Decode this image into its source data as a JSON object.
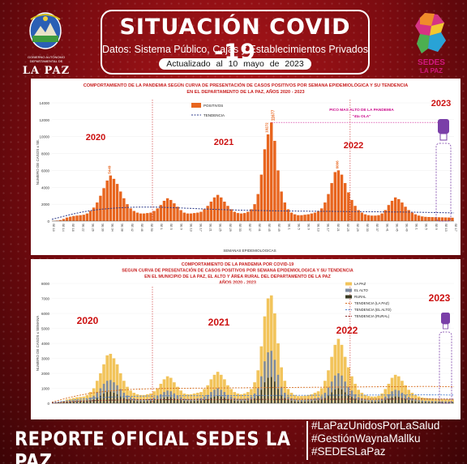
{
  "header": {
    "title": "SITUACIÓN COVID -19",
    "subtitle": "Datos: Sistema Público, Cajas y Establecimientos Privados",
    "updated": "Actualizado al 10 mayo de 2023",
    "left_logo": {
      "org_text": "GOBIERNO AUTÓNOMO DEPARTAMENTAL DE",
      "name": "LA PAZ",
      "icon": "department-shield-icon"
    },
    "right_logo": {
      "name": "SEDES",
      "sub": "LA PAZ",
      "icon": "sedes-map-logo-icon"
    }
  },
  "colors": {
    "bars": "#e8651e",
    "trend": "#2f3d8c",
    "year": "#cc1010",
    "peak": "#cc0c8c",
    "lapaz": "#f2c45b",
    "elalto": "#7f8ca0",
    "rural": "#3b3b22"
  },
  "chart_data": [
    {
      "type": "bar",
      "title_line1": "COMPORTAMIENTO DE LA PANDEMIA SEGÚN CURVA DE PRESENTACIÓN DE CASOS POSITIVOS POR SEMANA EPIDEMIOLÓGICA Y SU TENDENCIA",
      "title_line2": "EN EL DEPARTAMENTO DE LA PAZ, AÑOS 2020 - 2023",
      "xlabel": "SEMANAS EPIDEMIOLOGICAS",
      "ylabel": "NUMERO DE CASOS x SE.",
      "ylim": [
        0,
        14000
      ],
      "yticks": [
        "0",
        "2000",
        "4000",
        "6000",
        "8000",
        "10000",
        "12000",
        "14000"
      ],
      "xticks": [
        "SE 10",
        "SE 14",
        "SE 18",
        "SE 22",
        "SE 26",
        "SE 30",
        "SE 34",
        "SE 38",
        "SE 42",
        "SE 46",
        "SE 50",
        "SE 1",
        "SE 5",
        "SE 9",
        "SE 13",
        "SE 17",
        "SE 21",
        "SE 25",
        "SE 29",
        "SE 33",
        "SE 37",
        "SE 41",
        "SE 45",
        "SE 49",
        "SE 1",
        "SE 5",
        "SE 9",
        "SE 13",
        "SE 17",
        "SE 21",
        "SE 25",
        "SE 29",
        "SE 33",
        "SE 37",
        "SE 41",
        "SE 45",
        "SE 49",
        "SE 1",
        "SE 5",
        "SE 9",
        "SE 13",
        "SE 17"
      ],
      "legend": [
        "POSITIVOS",
        "TENDENCIA"
      ],
      "legend_position": "top-left",
      "years": [
        "2020",
        "2021",
        "2022",
        "2023"
      ],
      "peak_label": "PICO MAS ALTO DE LA PANDEMIA",
      "peak_sub": "\"4ta OLA\"",
      "peak_value": "11677",
      "annotations": [
        "5449",
        "10272",
        "6006"
      ],
      "series": [
        {
          "name": "POSITIVOS",
          "values": [
            30,
            60,
            120,
            250,
            420,
            520,
            600,
            650,
            700,
            750,
            900,
            1200,
            1600,
            2200,
            3000,
            3900,
            4800,
            5400,
            5000,
            4400,
            3500,
            2700,
            2000,
            1500,
            1200,
            1000,
            900,
            900,
            950,
            1000,
            1200,
            1500,
            1900,
            2400,
            2700,
            2500,
            2100,
            1700,
            1300,
            1000,
            900,
            900,
            950,
            1000,
            1100,
            1400,
            1800,
            2300,
            2800,
            3100,
            2800,
            2300,
            1800,
            1400,
            1100,
            950,
            900,
            950,
            1100,
            1400,
            2000,
            3200,
            5500,
            8500,
            10272,
            11677,
            9500,
            6000,
            3500,
            2200,
            1400,
            1000,
            800,
            700,
            700,
            750,
            800,
            900,
            1000,
            1200,
            1500,
            2200,
            3200,
            4500,
            5800,
            6006,
            5500,
            4500,
            3400,
            2500,
            1800,
            1300,
            1000,
            800,
            700,
            650,
            650,
            700,
            900,
            1300,
            1900,
            2400,
            2800,
            2600,
            2200,
            1700,
            1300,
            1000,
            800,
            650,
            550,
            500,
            480,
            470,
            460,
            450,
            440,
            430,
            420,
            400
          ]
        },
        {
          "name": "TENDENCIA",
          "values": [
            200,
            500,
            800,
            1050,
            1250,
            1400,
            1500,
            1580,
            1630,
            1660,
            1660,
            1640,
            1600,
            1560,
            1510,
            1460,
            1410,
            1370,
            1330,
            1300,
            1270,
            1250,
            1230,
            1210,
            1190,
            1180,
            1170,
            1160,
            1150,
            1140,
            1130,
            1120,
            1110,
            1100,
            1090,
            1080,
            1070,
            1050,
            1030,
            1010,
            990,
            970
          ]
        }
      ]
    },
    {
      "type": "bar",
      "title_line1": "COMPORTAMIENTO DE LA PANDEMIA POR COVID-19",
      "title_line2": "SEGUN CURVA DE PRESENTACIÓN DE CASOS POSITIVOS POR SEMANA EPIDEMIOLOGICA Y SU TENDENCIA",
      "title_line3": "EN EL MUNICIPIO DE LA PAZ, EL ALTO Y ÁREA RURAL DEL DEPARTAMENTO DE LA PAZ",
      "title_line4": "AÑOS 2020 - 2023",
      "ylabel": "NUMERO DE CASOS x SEMANA",
      "ylim": [
        0,
        8000
      ],
      "yticks": [
        "0",
        "1000",
        "2000",
        "3000",
        "4000",
        "5000",
        "6000",
        "7000",
        "8000"
      ],
      "legend": [
        "LA PAZ",
        "EL ALTO",
        "RURAL",
        "TENDENCIA (LA PAZ)",
        "TENDENCIA (EL ALTO)",
        "TENDENCIA (RURAL)"
      ],
      "legend_position": "top-right",
      "years": [
        "2020",
        "2021",
        "2022",
        "2023"
      ],
      "series": [
        {
          "name": "LA PAZ",
          "values": [
            20,
            40,
            80,
            150,
            250,
            300,
            350,
            400,
            420,
            450,
            550,
            750,
            1000,
            1500,
            2000,
            2600,
            3200,
            3300,
            3000,
            2600,
            2000,
            1500,
            1100,
            850,
            700,
            600,
            550,
            550,
            600,
            650,
            800,
            1000,
            1300,
            1600,
            1800,
            1700,
            1400,
            1100,
            850,
            650,
            600,
            600,
            650,
            700,
            750,
            950,
            1200,
            1600,
            1900,
            2100,
            1900,
            1600,
            1200,
            950,
            750,
            650,
            600,
            650,
            750,
            950,
            1400,
            2200,
            3800,
            5800,
            7000,
            7200,
            6000,
            4000,
            2400,
            1500,
            950,
            700,
            550,
            480,
            480,
            500,
            550,
            600,
            700,
            800,
            1000,
            1500,
            2200,
            3100,
            3900,
            4300,
            3900,
            3100,
            2400,
            1800,
            1300,
            900,
            700,
            550,
            480,
            450,
            450,
            500,
            650,
            950,
            1300,
            1700,
            1900,
            1800,
            1500,
            1200,
            900,
            700,
            550,
            450,
            380,
            350,
            330,
            320,
            310,
            300,
            290,
            280,
            270,
            250
          ]
        },
        {
          "name": "EL ALTO",
          "values": [
            10,
            20,
            40,
            80,
            130,
            160,
            190,
            210,
            220,
            230,
            280,
            380,
            500,
            750,
            1000,
            1300,
            1500,
            1550,
            1400,
            1200,
            950,
            700,
            520,
            400,
            330,
            280,
            260,
            260,
            280,
            300,
            380,
            470,
            600,
            750,
            850,
            800,
            660,
            520,
            400,
            300,
            280,
            280,
            300,
            330,
            350,
            450,
            560,
            750,
            900,
            1000,
            900,
            750,
            560,
            450,
            350,
            300,
            280,
            300,
            350,
            450,
            650,
            1000,
            1800,
            2800,
            3400,
            3500,
            2900,
            1900,
            1100,
            700,
            450,
            330,
            260,
            220,
            220,
            230,
            260,
            280,
            330,
            380,
            470,
            700,
            1050,
            1450,
            1850,
            2000,
            1850,
            1450,
            1100,
            850,
            600,
            420,
            330,
            260,
            220,
            210,
            210,
            230,
            300,
            450,
            600,
            800,
            900,
            850,
            700,
            560,
            420,
            330,
            260,
            210,
            180,
            160,
            150,
            150,
            145,
            140,
            135,
            130,
            125,
            115
          ]
        },
        {
          "name": "RURAL",
          "values": [
            5,
            10,
            20,
            40,
            60,
            80,
            90,
            100,
            110,
            115,
            140,
            190,
            250,
            370,
            500,
            650,
            750,
            780,
            700,
            600,
            480,
            350,
            260,
            200,
            165,
            140,
            130,
            130,
            140,
            150,
            190,
            230,
            300,
            370,
            420,
            400,
            330,
            260,
            200,
            150,
            140,
            140,
            150,
            165,
            175,
            225,
            280,
            370,
            450,
            500,
            450,
            370,
            280,
            225,
            175,
            150,
            140,
            150,
            175,
            225,
            330,
            500,
            900,
            1400,
            1700,
            1750,
            1450,
            950,
            550,
            350,
            225,
            165,
            130,
            110,
            110,
            115,
            130,
            140,
            165,
            190,
            235,
            350,
            520,
            730,
            920,
            1000,
            920,
            730,
            550,
            420,
            300,
            210,
            165,
            130,
            110,
            105,
            105,
            115,
            150,
            225,
            300,
            400,
            450,
            420,
            350,
            280,
            210,
            165,
            130,
            105,
            90,
            80,
            75,
            75,
            72,
            70,
            68,
            65,
            62,
            58
          ]
        },
        {
          "name": "TENDENCIA (LA PAZ)",
          "values": [
            80,
            250,
            420,
            560,
            670,
            760,
            830,
            880,
            920,
            950,
            970,
            985,
            995,
            1000,
            1005,
            1010,
            1015,
            1020,
            1025,
            1030,
            1035,
            1040,
            1045,
            1050,
            1055,
            1060,
            1065,
            1070,
            1075,
            1080,
            1085,
            1090,
            1095,
            1100,
            1105,
            1110,
            1115,
            1120,
            1125,
            1120,
            1110,
            1100
          ]
        },
        {
          "name": "TENDENCIA (EL ALTO)",
          "values": [
            40,
            120,
            210,
            280,
            335,
            380,
            415,
            440,
            460,
            475,
            485,
            492,
            497,
            500,
            502,
            505,
            507,
            510,
            512,
            515,
            517,
            520,
            522,
            525,
            527,
            530,
            532,
            535,
            537,
            540,
            542,
            545,
            547,
            550,
            552,
            555,
            557,
            560,
            562,
            560,
            555,
            550
          ]
        },
        {
          "name": "TENDENCIA (RURAL)",
          "values": [
            20,
            60,
            105,
            140,
            168,
            190,
            208,
            220,
            230,
            238,
            243,
            246,
            249,
            250,
            251,
            252,
            254,
            255,
            256,
            258,
            259,
            260,
            261,
            262,
            264,
            265,
            266,
            267,
            269,
            270,
            271,
            272,
            274,
            275,
            276,
            278,
            279,
            280,
            281,
            280,
            278,
            275
          ]
        }
      ]
    }
  ],
  "footer": {
    "title": "REPORTE OFICIAL SEDES LA PAZ",
    "hashtags": [
      "#LaPazUnidosPorLaSalud",
      "#GestiónWaynaMallku",
      "#SEDESLaPaz"
    ]
  }
}
